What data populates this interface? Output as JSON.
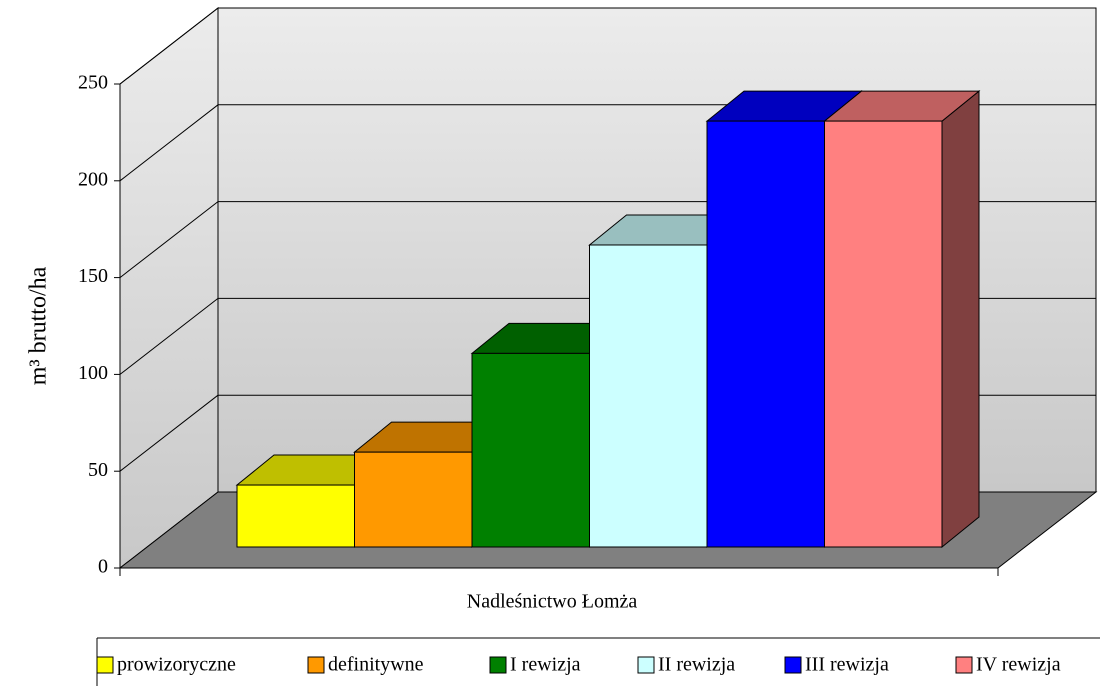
{
  "chart_data": {
    "type": "bar",
    "categories": [
      "Nadleśnictwo Łomża"
    ],
    "ylabel": "m³ brutto/ha",
    "series": [
      {
        "name": "prowizoryczne",
        "color": "#ffff00",
        "values": [
          32
        ]
      },
      {
        "name": "definitywne",
        "color": "#ff9900",
        "values": [
          49
        ]
      },
      {
        "name": "I rewizja",
        "color": "#008000",
        "values": [
          100
        ]
      },
      {
        "name": "II rewizja",
        "color": "#ccffff",
        "values": [
          156
        ]
      },
      {
        "name": "III rewizja",
        "color": "#0000ff",
        "values": [
          220
        ]
      },
      {
        "name": "IV rewizja",
        "color": "#ff8080",
        "values": [
          220
        ]
      }
    ],
    "ylim": [
      0,
      250
    ],
    "yticks": [
      0,
      50,
      100,
      150,
      200,
      250
    ],
    "grid": true,
    "legend": "bottom"
  }
}
